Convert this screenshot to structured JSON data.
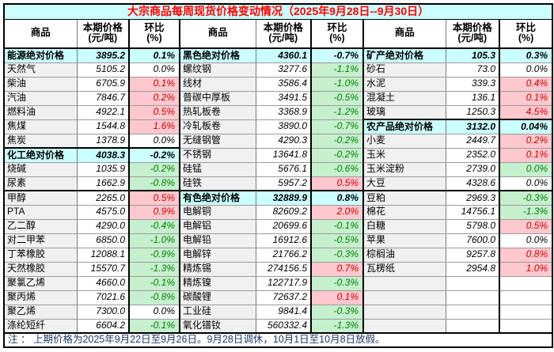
{
  "title": "大宗商品每周现货价格变动情况（2025年9月28日--9月30日）",
  "note": "注 ： 上期价格为2025年9月22日至9月26日。9月28日调休，10月1日至10月8日放假。",
  "headers": {
    "commodity": "商品",
    "price_line1": "本期价格",
    "price_line2": "(元/吨)",
    "pct_line1": "环比",
    "pct_line2": "(%)"
  },
  "colors": {
    "title_text": "#FF0000",
    "category_bg": "#CCFFFF",
    "up_bg": "#FFC7CE",
    "up_text": "#CC0000",
    "down_bg": "#C6EFCE",
    "down_text": "#008000",
    "name_bg": "#F0F0F0",
    "note_text": "#1F3864"
  },
  "table": {
    "groups": [
      {
        "rows": [
          {
            "type": "category",
            "name": "能源绝对价格",
            "price": "3895.2",
            "pct": "0.1%"
          },
          {
            "type": "item",
            "name": "天然气",
            "price": "5105.2",
            "pct": "0.0%",
            "trend": "flat"
          },
          {
            "type": "item",
            "name": "柴油",
            "price": "6705.9",
            "pct": "0.1%",
            "trend": "up"
          },
          {
            "type": "item",
            "name": "汽油",
            "price": "7846.7",
            "pct": "0.2%",
            "trend": "up"
          },
          {
            "type": "item",
            "name": "燃料油",
            "price": "4922.1",
            "pct": "0.5%",
            "trend": "up"
          },
          {
            "type": "item",
            "name": "焦煤",
            "price": "1544.8",
            "pct": "1.6%",
            "trend": "up"
          },
          {
            "type": "item",
            "name": "焦炭",
            "price": "1378.9",
            "pct": "0.0%",
            "trend": "flat"
          },
          {
            "type": "category",
            "name": "化工绝对价格",
            "price": "4038.3",
            "pct": "-0.2%"
          },
          {
            "type": "item",
            "name": "烧碱",
            "price": "1035.9",
            "pct": "-0.2%",
            "trend": "down"
          },
          {
            "type": "item",
            "name": "尿素",
            "price": "1662.9",
            "pct": "-0.8%",
            "trend": "down"
          },
          {
            "type": "item",
            "name": "甲醇",
            "price": "2265.0",
            "pct": "0.5%",
            "trend": "up"
          },
          {
            "type": "item",
            "name": "PTA",
            "price": "4575.0",
            "pct": "0.9%",
            "trend": "up"
          },
          {
            "type": "item",
            "name": "乙二醇",
            "price": "4290.0",
            "pct": "-0.4%",
            "trend": "down"
          },
          {
            "type": "item",
            "name": "对二甲苯",
            "price": "6850.0",
            "pct": "-1.0%",
            "trend": "down"
          },
          {
            "type": "item",
            "name": "丁苯橡胶",
            "price": "12088.1",
            "pct": "-0.9%",
            "trend": "down"
          },
          {
            "type": "item",
            "name": "天然橡胶",
            "price": "15570.7",
            "pct": "-1.3%",
            "trend": "down"
          },
          {
            "type": "item",
            "name": "聚氯乙烯",
            "price": "4660.0",
            "pct": "-0.1%",
            "trend": "down"
          },
          {
            "type": "item",
            "name": "聚丙烯",
            "price": "7021.6",
            "pct": "-0.8%",
            "trend": "down"
          },
          {
            "type": "item",
            "name": "聚乙烯",
            "price": "7300.0",
            "pct": "0.0%",
            "trend": "flat"
          },
          {
            "type": "item",
            "name": "涤纶短纤",
            "price": "6604.2",
            "pct": "-0.1%",
            "trend": "down"
          }
        ]
      },
      {
        "rows": [
          {
            "type": "category",
            "name": "黑色绝对价格",
            "price": "4360.1",
            "pct": "-0.7%"
          },
          {
            "type": "item",
            "name": "螺纹钢",
            "price": "3277.6",
            "pct": "-1.1%",
            "trend": "down"
          },
          {
            "type": "item",
            "name": "线材",
            "price": "3586.4",
            "pct": "-1.0%",
            "trend": "down"
          },
          {
            "type": "item",
            "name": "普碳中厚板",
            "price": "3491.5",
            "pct": "-0.5%",
            "trend": "down"
          },
          {
            "type": "item",
            "name": "热轧板卷",
            "price": "3368.9",
            "pct": "-1.2%",
            "trend": "down"
          },
          {
            "type": "item",
            "name": "冷轧板卷",
            "price": "3890.0",
            "pct": "-0.7%",
            "trend": "down"
          },
          {
            "type": "item",
            "name": "无缝钢管",
            "price": "4290.3",
            "pct": "-0.2%",
            "trend": "down"
          },
          {
            "type": "item",
            "name": "不锈钢",
            "price": "13641.8",
            "pct": "-0.2%",
            "trend": "down"
          },
          {
            "type": "item",
            "name": "硅锰",
            "price": "5676.1",
            "pct": "-0.6%",
            "trend": "down"
          },
          {
            "type": "item",
            "name": "硅铁",
            "price": "5957.2",
            "pct": "0.5%",
            "trend": "up"
          },
          {
            "type": "category",
            "name": "有色绝对价格",
            "price": "32889.9",
            "pct": "0.8%"
          },
          {
            "type": "item",
            "name": "电解铜",
            "price": "82609.2",
            "pct": "2.0%",
            "trend": "up"
          },
          {
            "type": "item",
            "name": "电解铝",
            "price": "20699.6",
            "pct": "-0.1%",
            "trend": "down"
          },
          {
            "type": "item",
            "name": "电解铅",
            "price": "16912.6",
            "pct": "-0.5%",
            "trend": "down"
          },
          {
            "type": "item",
            "name": "电解锌",
            "price": "21766.2",
            "pct": "-0.3%",
            "trend": "down"
          },
          {
            "type": "item",
            "name": "精炼锡",
            "price": "274156.5",
            "pct": "0.7%",
            "trend": "up"
          },
          {
            "type": "item",
            "name": "精炼镍",
            "price": "122717.9",
            "pct": "-0.3%",
            "trend": "down"
          },
          {
            "type": "item",
            "name": "碳酸锂",
            "price": "72637.2",
            "pct": "0.1%",
            "trend": "up"
          },
          {
            "type": "item",
            "name": "工业硅",
            "price": "9841.4",
            "pct": "-0.3%",
            "trend": "down"
          },
          {
            "type": "item",
            "name": "氧化镨钕",
            "price": "560332.4",
            "pct": "-1.3%",
            "trend": "down"
          }
        ]
      },
      {
        "rows": [
          {
            "type": "category",
            "name": "矿产绝对价格",
            "price": "105.3",
            "pct": "0.3%"
          },
          {
            "type": "item",
            "name": "砂石",
            "price": "73.0",
            "pct": "0.0%",
            "trend": "flat"
          },
          {
            "type": "item",
            "name": "水泥",
            "price": "339.3",
            "pct": "0.4%",
            "trend": "up"
          },
          {
            "type": "item",
            "name": "混凝土",
            "price": "136.1",
            "pct": "0.1%",
            "trend": "up"
          },
          {
            "type": "item",
            "name": "玻璃",
            "price": "1250.3",
            "pct": "4.5%",
            "trend": "up"
          },
          {
            "type": "category",
            "name": "农产品绝对价格",
            "price": "3132.0",
            "pct": "0.04%"
          },
          {
            "type": "item",
            "name": "小麦",
            "price": "2449.7",
            "pct": "0.2%",
            "trend": "up"
          },
          {
            "type": "item",
            "name": "玉米",
            "price": "2352.0",
            "pct": "0.1%",
            "trend": "up"
          },
          {
            "type": "item",
            "name": "玉米淀粉",
            "price": "2739.0",
            "pct": "0.0%",
            "trend": "down"
          },
          {
            "type": "item",
            "name": "大豆",
            "price": "4328.6",
            "pct": "0.0%",
            "trend": "flat"
          },
          {
            "type": "item",
            "name": "豆粕",
            "price": "2969.3",
            "pct": "-0.3%",
            "trend": "down"
          },
          {
            "type": "item",
            "name": "棉花",
            "price": "14756.1",
            "pct": "-1.3%",
            "trend": "down"
          },
          {
            "type": "item",
            "name": "白糖",
            "price": "5798.0",
            "pct": "0.5%",
            "trend": "up"
          },
          {
            "type": "item",
            "name": "苹果",
            "price": "7600.0",
            "pct": "0.0%",
            "trend": "flat"
          },
          {
            "type": "item",
            "name": "棕榈油",
            "price": "9257.8",
            "pct": "0.8%",
            "trend": "up"
          },
          {
            "type": "item",
            "name": "瓦楞纸",
            "price": "2954.8",
            "pct": "1.0%",
            "trend": "up"
          },
          {
            "type": "empty"
          },
          {
            "type": "empty"
          },
          {
            "type": "empty"
          },
          {
            "type": "empty"
          }
        ]
      }
    ]
  }
}
